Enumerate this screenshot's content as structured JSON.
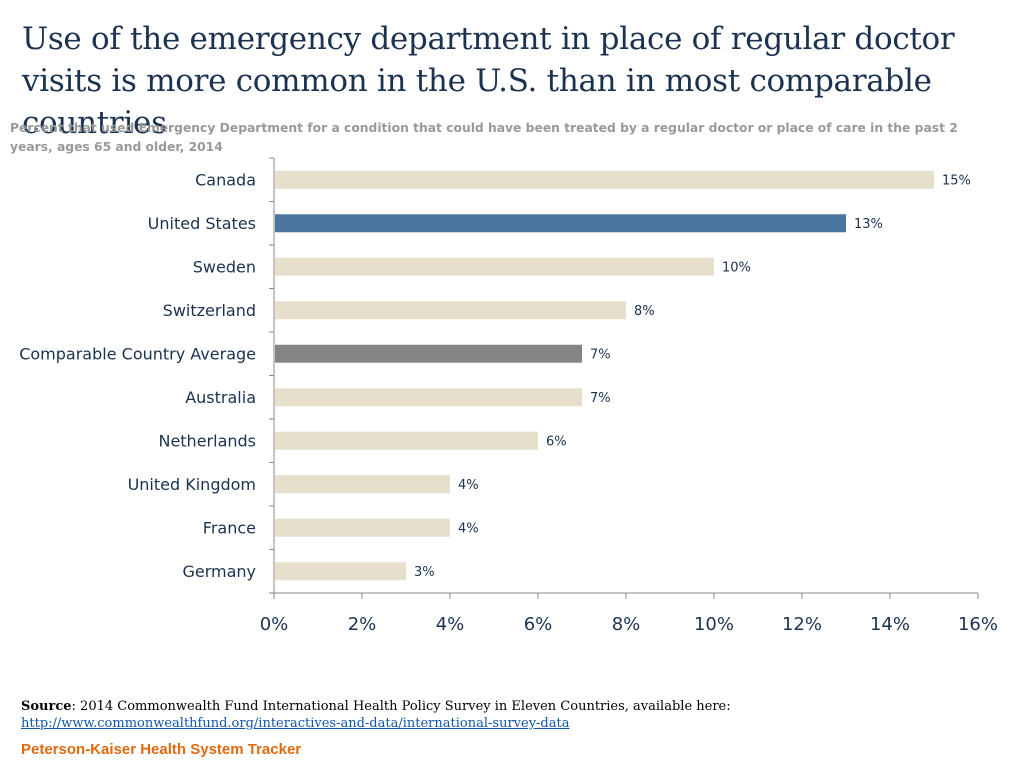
{
  "chart_data": {
    "type": "bar",
    "orientation": "horizontal",
    "title": "Use of the emergency department in place of regular doctor visits is more common in the U.S. than in most comparable countries",
    "subtitle": "Percent that used Emergency Department for a condition that could have been treated by a regular doctor or place of care in the past 2 years, ages 65 and older, 2014",
    "categories": [
      "Canada",
      "United States",
      "Sweden",
      "Switzerland",
      "Comparable Country Average",
      "Australia",
      "Netherlands",
      "United Kingdom",
      "France",
      "Germany"
    ],
    "values": [
      15,
      13,
      10,
      8,
      7,
      7,
      6,
      4,
      4,
      3
    ],
    "value_labels": [
      "15%",
      "13%",
      "10%",
      "8%",
      "7%",
      "7%",
      "6%",
      "4%",
      "4%",
      "3%"
    ],
    "xlim": [
      0,
      16
    ],
    "xticks": [
      0,
      2,
      4,
      6,
      8,
      10,
      12,
      14,
      16
    ],
    "xtick_labels": [
      "0%",
      "2%",
      "4%",
      "6%",
      "8%",
      "10%",
      "12%",
      "14%",
      "16%"
    ],
    "xlabel": "",
    "ylabel": "",
    "grid": false,
    "colors": {
      "default": "#e5dfcb",
      "highlight_us": "#4a76a0",
      "highlight_avg": "#858585",
      "axis": "#8a8a8a",
      "text": "#1b3250"
    },
    "bar_colors": [
      "default",
      "highlight_us",
      "default",
      "default",
      "highlight_avg",
      "default",
      "default",
      "default",
      "default",
      "default"
    ]
  },
  "source": {
    "label": "Source",
    "text": ":  2014 Commonwealth Fund International Health Policy Survey in Eleven Countries, available here:",
    "link": "http://www.commonwealthfund.org/interactives-and-data/international-survey-data"
  },
  "footer": {
    "brand": "Peterson-Kaiser Health System Tracker"
  }
}
